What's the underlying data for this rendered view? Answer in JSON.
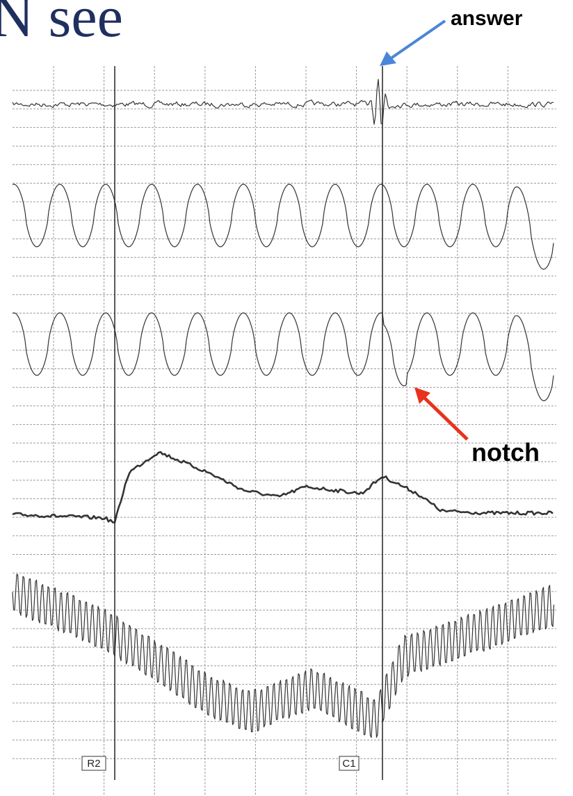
{
  "header": {
    "title": "N see"
  },
  "annotations": [
    "answer",
    "notch"
  ],
  "markers": [
    "R2",
    "C1"
  ]
}
